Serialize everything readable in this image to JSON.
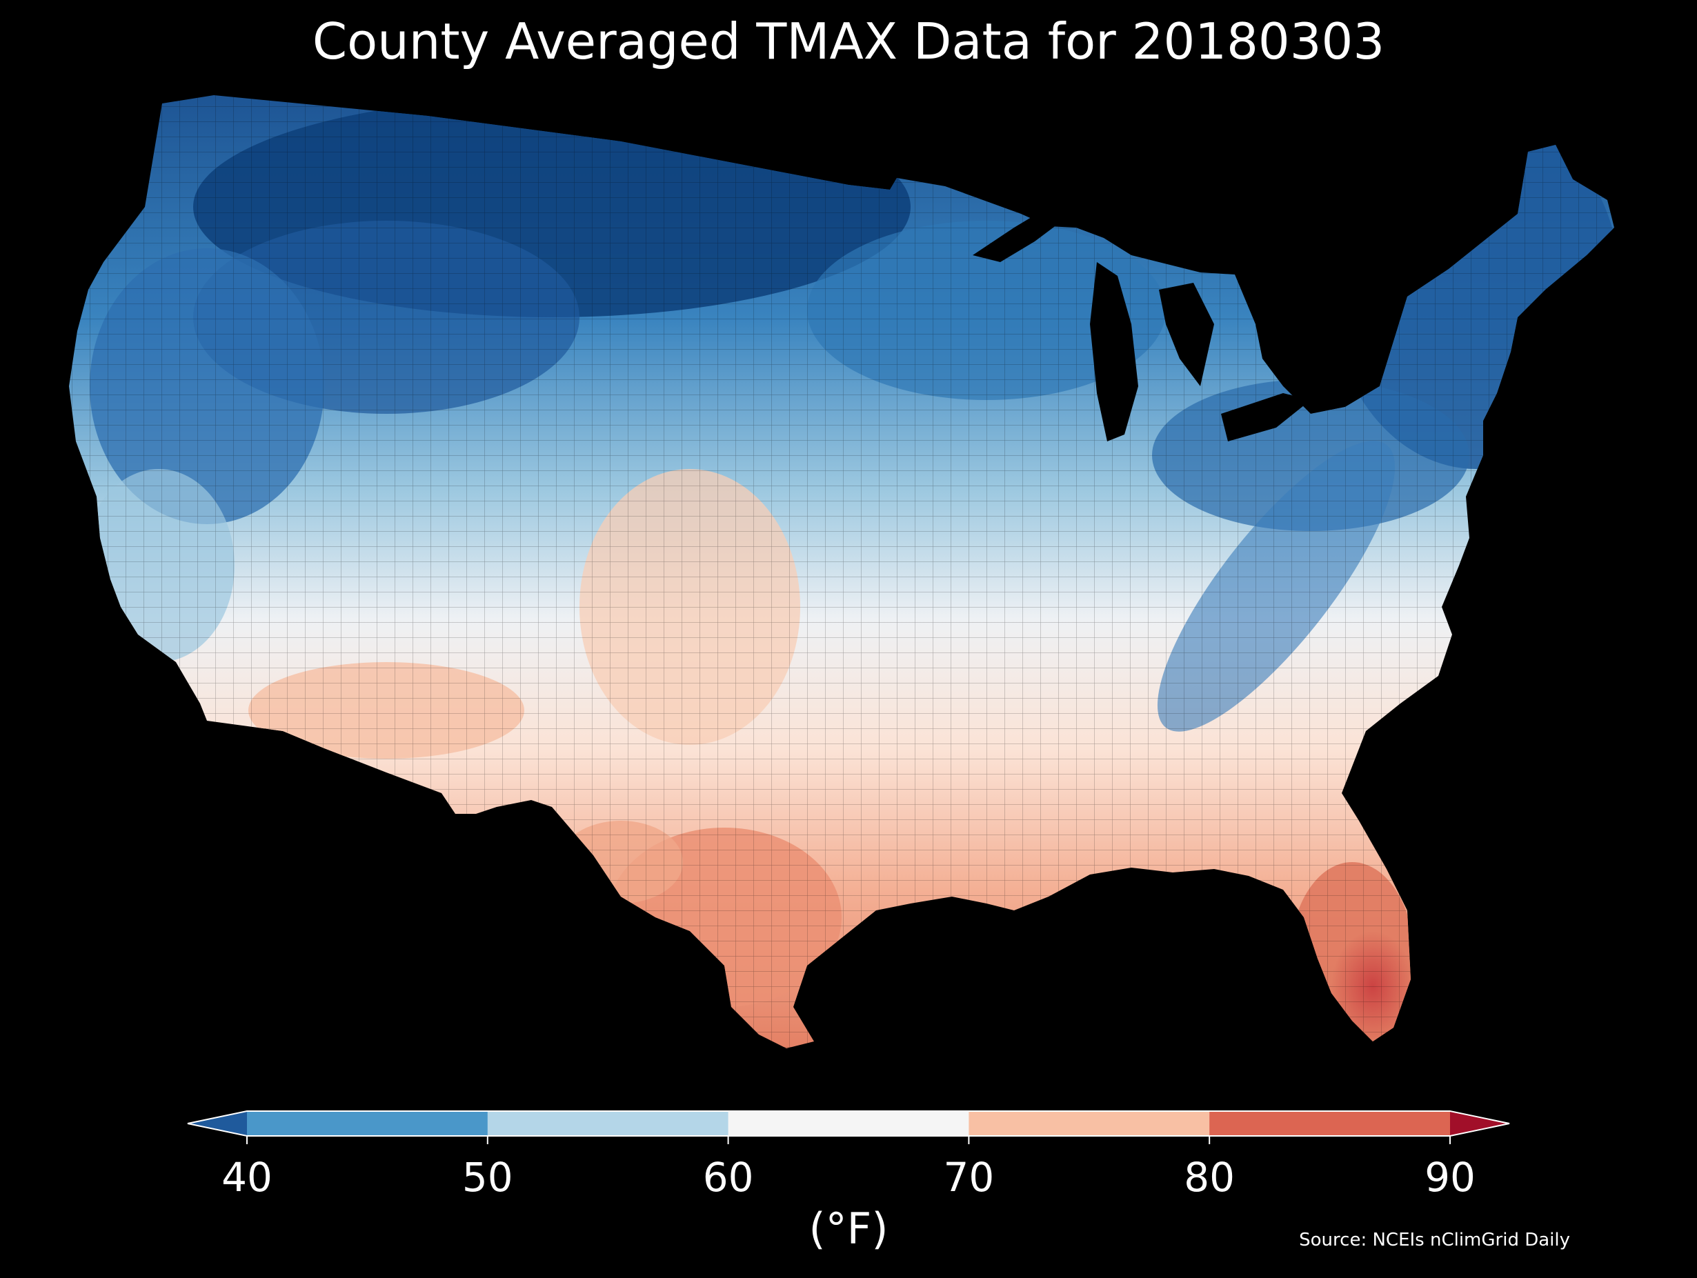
{
  "title": "County Averaged TMAX Data for 20180303",
  "colorbar": {
    "unit_label": "(°F)",
    "ticks": [
      "40",
      "50",
      "60",
      "70",
      "80",
      "90"
    ],
    "bins": [
      {
        "range": "<40",
        "color": "#1f5a9c"
      },
      {
        "range": "40-50",
        "color": "#4a97c9"
      },
      {
        "range": "50-60",
        "color": "#b4d6e8"
      },
      {
        "range": "60-70",
        "color": "#f5f5f5"
      },
      {
        "range": "70-80",
        "color": "#f8c0a4"
      },
      {
        "range": "80-90",
        "color": "#dc6552"
      },
      {
        "range": ">90",
        "color": "#a10f29"
      }
    ]
  },
  "source": "Source: NCEIs nClimGrid Daily",
  "colors": {
    "background": "#000000",
    "deep_blue": "#083a74",
    "blue": "#1f5a9c",
    "mid_blue": "#4a97c9",
    "light_blue": "#b4d6e8",
    "white": "#f5f5f5",
    "peach": "#f8c0a4",
    "salmon": "#ee9a7b",
    "red": "#dc6552"
  }
}
